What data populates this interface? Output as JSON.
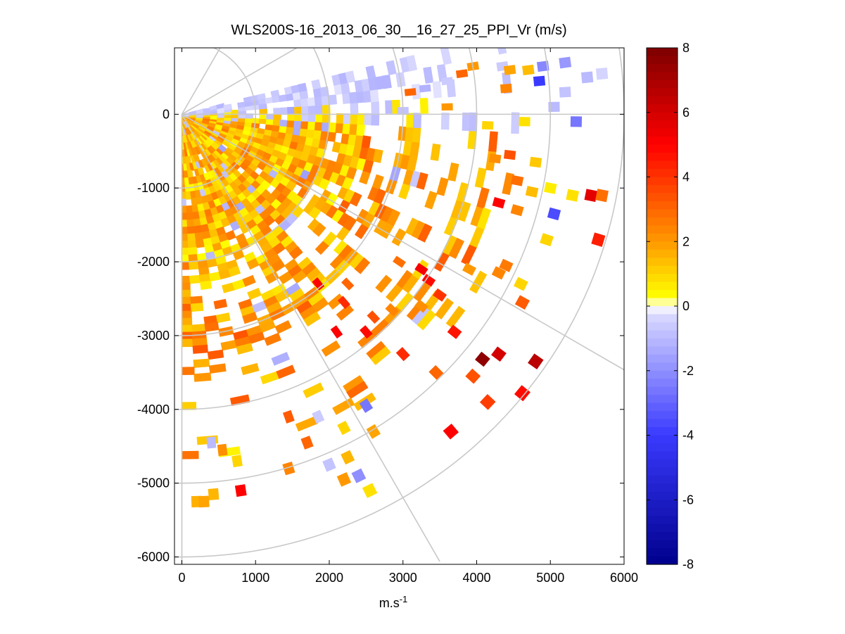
{
  "chart_data": {
    "type": "heatmap",
    "subtype": "ppi-polar-scan",
    "title": "WLS200S-16_2013_06_30__16_27_25_PPI_Vr (m/s)",
    "xlabel": "m.s",
    "xlabel_superscript": "-1",
    "ylabel": "",
    "xlim": [
      -100,
      6000
    ],
    "ylim": [
      -6100,
      900
    ],
    "xticks": [
      0,
      1000,
      2000,
      3000,
      4000,
      5000,
      6000
    ],
    "yticks": [
      0,
      -1000,
      -2000,
      -3000,
      -4000,
      -5000,
      -6000
    ],
    "xtick_labels": [
      "0",
      "1000",
      "2000",
      "3000",
      "4000",
      "5000",
      "6000"
    ],
    "ytick_labels": [
      "0",
      "-1000",
      "-2000",
      "-3000",
      "-4000",
      "-5000",
      "-6000"
    ],
    "range_rings": [
      1000,
      2000,
      3000,
      4000,
      5000,
      6000
    ],
    "radial_lines_deg": [
      -90,
      -60,
      -30,
      0,
      30,
      60
    ],
    "scan_sector_deg": [
      -90,
      15
    ],
    "colorbar": {
      "min": -8,
      "max": 8,
      "ticks": [
        8,
        6,
        4,
        2,
        0,
        -2,
        -4,
        -6,
        -8
      ],
      "tick_labels": [
        "8",
        "6",
        "4",
        "2",
        "0",
        "-2",
        "-4",
        "-6",
        "-8"
      ],
      "label": "Vr (m/s)"
    },
    "colors": {
      "grid": "#c8c8c8",
      "neg_strong": "#00008c",
      "neg": "#3a3aff",
      "zero": "#ffffff",
      "pos_weak": "#ffff00",
      "pos": "#ff9800",
      "pos_strong": "#7d0000"
    },
    "cells": [
      {
        "x": 200,
        "y": -5250,
        "v": 1.6
      },
      {
        "x": 300,
        "y": -5250,
        "v": 1.8
      },
      {
        "x": 430,
        "y": -5150,
        "v": 1.5
      },
      {
        "x": 800,
        "y": -5100,
        "v": 5.0
      },
      {
        "x": 400,
        "y": -4450,
        "v": -1.0
      },
      {
        "x": 550,
        "y": -4550,
        "v": 2.2
      },
      {
        "x": 750,
        "y": -4700,
        "v": 1.0
      },
      {
        "x": 1450,
        "y": -4800,
        "v": 2.4
      },
      {
        "x": 2200,
        "y": -4950,
        "v": 2.0
      },
      {
        "x": 2400,
        "y": -4900,
        "v": -2.0
      },
      {
        "x": 2550,
        "y": -5100,
        "v": 0.8
      },
      {
        "x": 2000,
        "y": -4750,
        "v": -0.8
      },
      {
        "x": 2250,
        "y": -4650,
        "v": 1.5
      },
      {
        "x": 1700,
        "y": -4450,
        "v": 3.0
      },
      {
        "x": 2200,
        "y": -4250,
        "v": 1.0
      },
      {
        "x": 2600,
        "y": -4300,
        "v": 1.8
      },
      {
        "x": 2500,
        "y": -3950,
        "v": -2.6
      },
      {
        "x": 1850,
        "y": -4100,
        "v": -0.6
      },
      {
        "x": 1450,
        "y": -4100,
        "v": 3.2
      },
      {
        "x": 3650,
        "y": -4300,
        "v": 5.0
      },
      {
        "x": 4150,
        "y": -3900,
        "v": 3.8
      },
      {
        "x": 4620,
        "y": -3780,
        "v": 4.8
      },
      {
        "x": 3450,
        "y": -3500,
        "v": 3.0
      },
      {
        "x": 3950,
        "y": -3550,
        "v": 3.4
      },
      {
        "x": 4080,
        "y": -3320,
        "v": 7.6
      },
      {
        "x": 4300,
        "y": -3250,
        "v": 6.0
      },
      {
        "x": 4800,
        "y": -3350,
        "v": 6.6
      },
      {
        "x": 3000,
        "y": -3250,
        "v": 4.2
      },
      {
        "x": 3700,
        "y": -2950,
        "v": 4.6
      },
      {
        "x": 2500,
        "y": -2950,
        "v": 4.8
      },
      {
        "x": 2100,
        "y": -2950,
        "v": 5.0
      },
      {
        "x": 3250,
        "y": -2600,
        "v": 2.2
      },
      {
        "x": 2850,
        "y": -2650,
        "v": 2.4
      },
      {
        "x": 3500,
        "y": -2450,
        "v": 4.0
      },
      {
        "x": 2200,
        "y": -2550,
        "v": 4.2
      },
      {
        "x": 2600,
        "y": -2750,
        "v": 3.4
      },
      {
        "x": 3350,
        "y": -2250,
        "v": 4.8
      },
      {
        "x": 3250,
        "y": -2100,
        "v": 5.2
      },
      {
        "x": 3900,
        "y": -2100,
        "v": 2.0
      },
      {
        "x": 4300,
        "y": -2150,
        "v": 2.4
      },
      {
        "x": 4600,
        "y": -2300,
        "v": 1.0
      },
      {
        "x": 4620,
        "y": -2550,
        "v": 3.2
      },
      {
        "x": 4400,
        "y": -2050,
        "v": 2.6
      },
      {
        "x": 2950,
        "y": -2000,
        "v": 2.8
      },
      {
        "x": 1850,
        "y": -2300,
        "v": 5.0
      },
      {
        "x": 2250,
        "y": -2300,
        "v": 3.0
      },
      {
        "x": 5050,
        "y": -1350,
        "v": -3.6
      },
      {
        "x": 4950,
        "y": -1700,
        "v": 1.0
      },
      {
        "x": 5650,
        "y": -1700,
        "v": 4.4
      },
      {
        "x": 5550,
        "y": -1100,
        "v": 5.6
      },
      {
        "x": 5700,
        "y": -1100,
        "v": 2.8
      },
      {
        "x": 5300,
        "y": -1100,
        "v": 0.8
      },
      {
        "x": 5000,
        "y": -1000,
        "v": 0.6
      },
      {
        "x": 4300,
        "y": -1200,
        "v": 5.0
      },
      {
        "x": 4550,
        "y": -1300,
        "v": 2.4
      },
      {
        "x": 4750,
        "y": -1050,
        "v": 1.4
      },
      {
        "x": 4550,
        "y": -900,
        "v": 2.8
      },
      {
        "x": 4250,
        "y": -600,
        "v": 2.2
      },
      {
        "x": 4800,
        "y": -650,
        "v": 1.2
      },
      {
        "x": 4450,
        "y": -550,
        "v": 3.4
      },
      {
        "x": 4150,
        "y": -150,
        "v": 1.0
      },
      {
        "x": 4650,
        "y": -100,
        "v": 0.8
      },
      {
        "x": 5050,
        "y": 100,
        "v": -1.0
      },
      {
        "x": 5350,
        "y": -100,
        "v": -2.6
      },
      {
        "x": 5200,
        "y": 300,
        "v": -0.8
      },
      {
        "x": 5500,
        "y": 500,
        "v": -1.0
      },
      {
        "x": 5700,
        "y": 550,
        "v": -0.4
      },
      {
        "x": 5200,
        "y": 700,
        "v": -1.8
      },
      {
        "x": 4900,
        "y": 650,
        "v": -2.2
      },
      {
        "x": 4700,
        "y": 600,
        "v": 1.4
      },
      {
        "x": 4850,
        "y": 450,
        "v": -4.0
      },
      {
        "x": 4400,
        "y": 350,
        "v": 2.4
      },
      {
        "x": 4350,
        "y": 650,
        "v": -0.6
      },
      {
        "x": 4450,
        "y": 600,
        "v": 1.8
      },
      {
        "x": 3950,
        "y": 650,
        "v": 2.0
      },
      {
        "x": 3800,
        "y": 550,
        "v": 3.0
      },
      {
        "x": 3600,
        "y": 450,
        "v": -0.6
      },
      {
        "x": 3600,
        "y": 100,
        "v": 2.0
      },
      {
        "x": 3300,
        "y": 350,
        "v": -1.2
      },
      {
        "x": 3100,
        "y": 300,
        "v": 3.0
      },
      {
        "x": 3000,
        "y": 50,
        "v": -0.8
      }
    ]
  }
}
